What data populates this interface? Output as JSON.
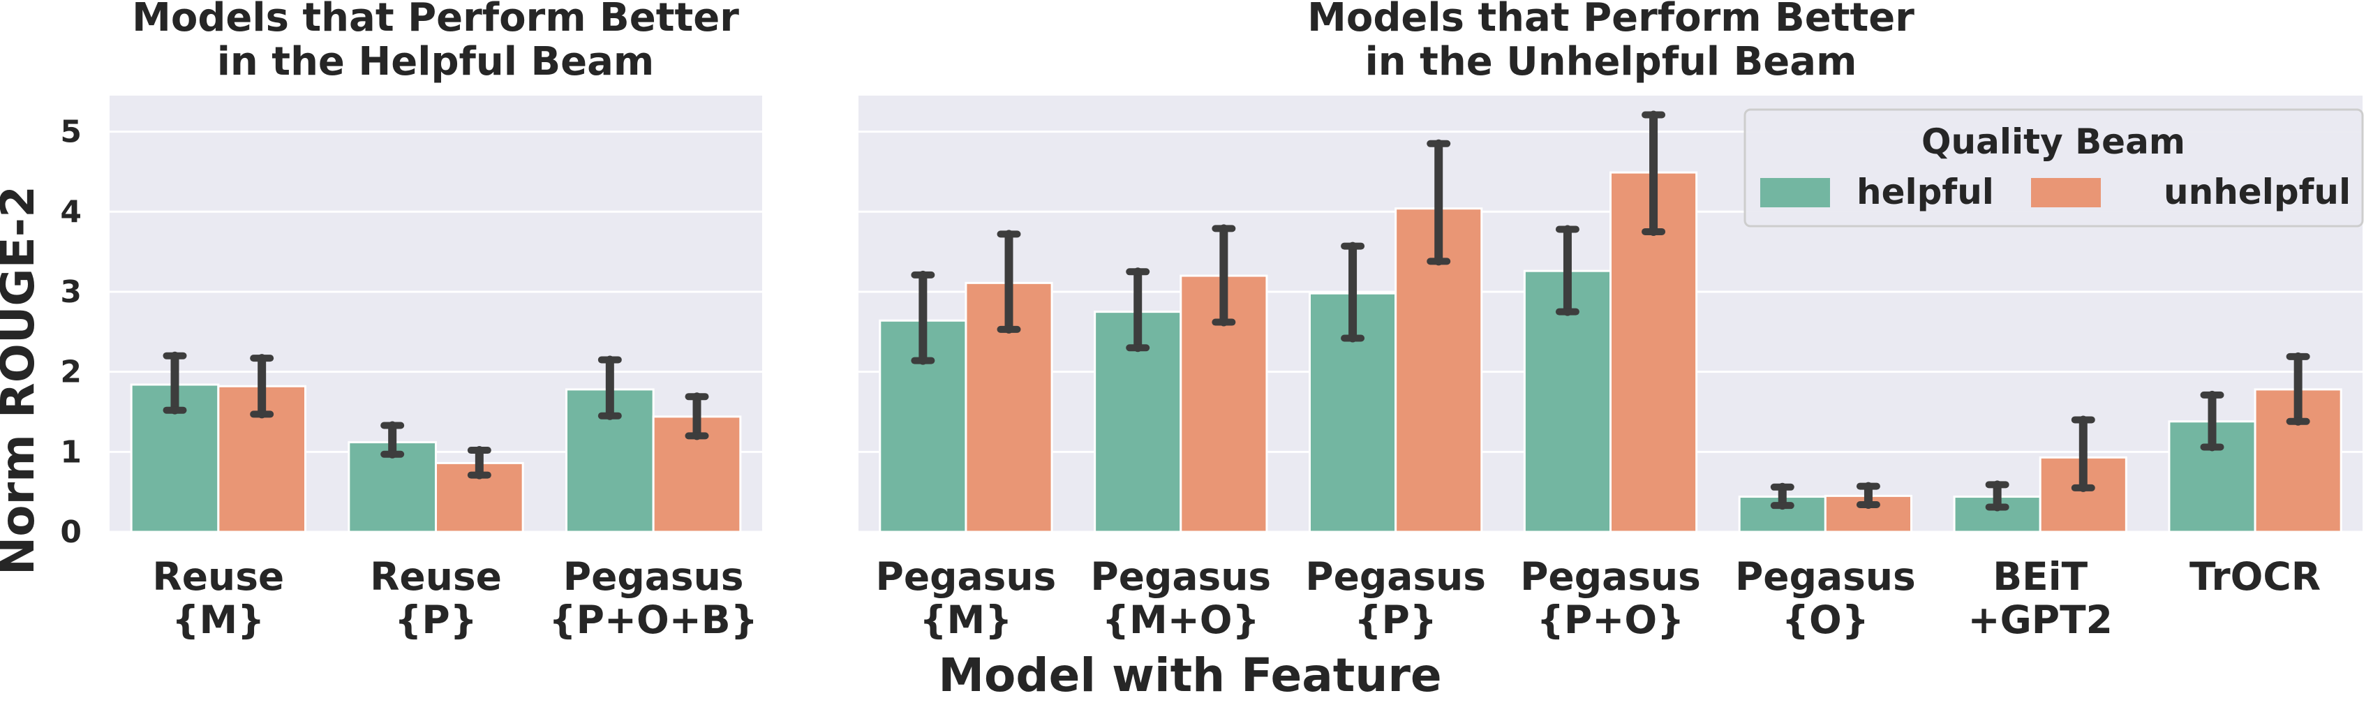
{
  "chart_data": [
    {
      "type": "bar",
      "title": "Models that Perform Better\nin the Helpful Beam",
      "ylabel": "Norm ROUGE-2",
      "ylim": [
        0,
        5.45
      ],
      "yticks": [
        "0",
        "1",
        "2",
        "3",
        "4",
        "5"
      ],
      "grid": true,
      "categories": [
        "Reuse\n{M}",
        "Reuse\n{P}",
        "Pegasus\n{P+O+B}"
      ],
      "series": [
        {
          "name": "helpful",
          "color": "#73b6a1",
          "values": [
            1.84,
            1.12,
            1.78
          ],
          "err_low": [
            1.52,
            0.97,
            1.45
          ],
          "err_high": [
            2.2,
            1.33,
            2.15
          ]
        },
        {
          "name": "unhelpful",
          "color": "#e99675",
          "values": [
            1.82,
            0.86,
            1.44
          ],
          "err_low": [
            1.47,
            0.71,
            1.2
          ],
          "err_high": [
            2.17,
            1.02,
            1.69
          ]
        }
      ]
    },
    {
      "type": "bar",
      "title": "Models that Perform Better\nin the Unhelpful Beam",
      "ylim": [
        0,
        5.45
      ],
      "grid": true,
      "categories": [
        "Pegasus\n{M}",
        "Pegasus\n{M+O}",
        "Pegasus\n{P}",
        "Pegasus\n{P+O}",
        "Pegasus\n{O}",
        "BEiT\n+GPT2",
        "TrOCR"
      ],
      "series": [
        {
          "name": "helpful",
          "color": "#73b6a1",
          "values": [
            2.64,
            2.75,
            2.98,
            3.26,
            0.44,
            0.44,
            1.38
          ],
          "err_low": [
            2.14,
            2.3,
            2.42,
            2.75,
            0.33,
            0.31,
            1.06
          ],
          "err_high": [
            3.21,
            3.25,
            3.57,
            3.78,
            0.56,
            0.59,
            1.71
          ]
        },
        {
          "name": "unhelpful",
          "color": "#e99675",
          "values": [
            3.11,
            3.2,
            4.04,
            4.49,
            0.45,
            0.93,
            1.78
          ],
          "err_low": [
            2.53,
            2.62,
            3.38,
            3.75,
            0.34,
            0.55,
            1.38
          ],
          "err_high": [
            3.72,
            3.79,
            4.85,
            5.21,
            0.57,
            1.4,
            2.19
          ]
        }
      ],
      "legend": {
        "title": "Quality Beam",
        "entries": [
          "helpful",
          "unhelpful"
        ],
        "placement": "top-right"
      }
    }
  ],
  "xlabel": "Model with Feature"
}
